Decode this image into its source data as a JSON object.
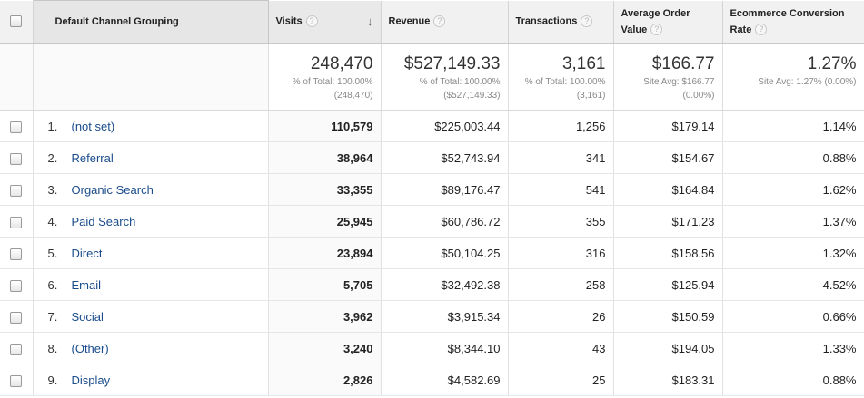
{
  "header": {
    "dimension": "Default Channel Grouping",
    "visits": "Visits",
    "revenue": "Revenue",
    "transactions": "Transactions",
    "aov_line1": "Average Order",
    "aov_line2": "Value",
    "ecr_line1": "Ecommerce Conversion",
    "ecr_line2": "Rate",
    "help_glyph": "?",
    "sort_glyph": "↓"
  },
  "totals": {
    "visits": {
      "value": "248,470",
      "line1": "% of Total: 100.00%",
      "line2": "(248,470)"
    },
    "revenue": {
      "value": "$527,149.33",
      "line1": "% of Total: 100.00%",
      "line2": "($527,149.33)"
    },
    "transactions": {
      "value": "3,161",
      "line1": "% of Total: 100.00%",
      "line2": "(3,161)"
    },
    "aov": {
      "value": "$166.77",
      "line1": "Site Avg: $166.77",
      "line2": "(0.00%)"
    },
    "ecr": {
      "value": "1.27%",
      "line1": "Site Avg: 1.27% (0.00%)"
    }
  },
  "rows": [
    {
      "num": "1.",
      "name": "(not set)",
      "visits": "110,579",
      "revenue": "$225,003.44",
      "transactions": "1,256",
      "aov": "$179.14",
      "ecr": "1.14%"
    },
    {
      "num": "2.",
      "name": "Referral",
      "visits": "38,964",
      "revenue": "$52,743.94",
      "transactions": "341",
      "aov": "$154.67",
      "ecr": "0.88%"
    },
    {
      "num": "3.",
      "name": "Organic Search",
      "visits": "33,355",
      "revenue": "$89,176.47",
      "transactions": "541",
      "aov": "$164.84",
      "ecr": "1.62%"
    },
    {
      "num": "4.",
      "name": "Paid Search",
      "visits": "25,945",
      "revenue": "$60,786.72",
      "transactions": "355",
      "aov": "$171.23",
      "ecr": "1.37%"
    },
    {
      "num": "5.",
      "name": "Direct",
      "visits": "23,894",
      "revenue": "$50,104.25",
      "transactions": "316",
      "aov": "$158.56",
      "ecr": "1.32%"
    },
    {
      "num": "6.",
      "name": "Email",
      "visits": "5,705",
      "revenue": "$32,492.38",
      "transactions": "258",
      "aov": "$125.94",
      "ecr": "4.52%"
    },
    {
      "num": "7.",
      "name": "Social",
      "visits": "3,962",
      "revenue": "$3,915.34",
      "transactions": "26",
      "aov": "$150.59",
      "ecr": "0.66%"
    },
    {
      "num": "8.",
      "name": "(Other)",
      "visits": "3,240",
      "revenue": "$8,344.10",
      "transactions": "43",
      "aov": "$194.05",
      "ecr": "1.33%"
    },
    {
      "num": "9.",
      "name": "Display",
      "visits": "2,826",
      "revenue": "$4,582.69",
      "transactions": "25",
      "aov": "$183.31",
      "ecr": "0.88%"
    }
  ],
  "colors": {
    "link": "#1a4c8c",
    "header_bg": "#f1f1f1",
    "border": "#d4d4d4"
  }
}
